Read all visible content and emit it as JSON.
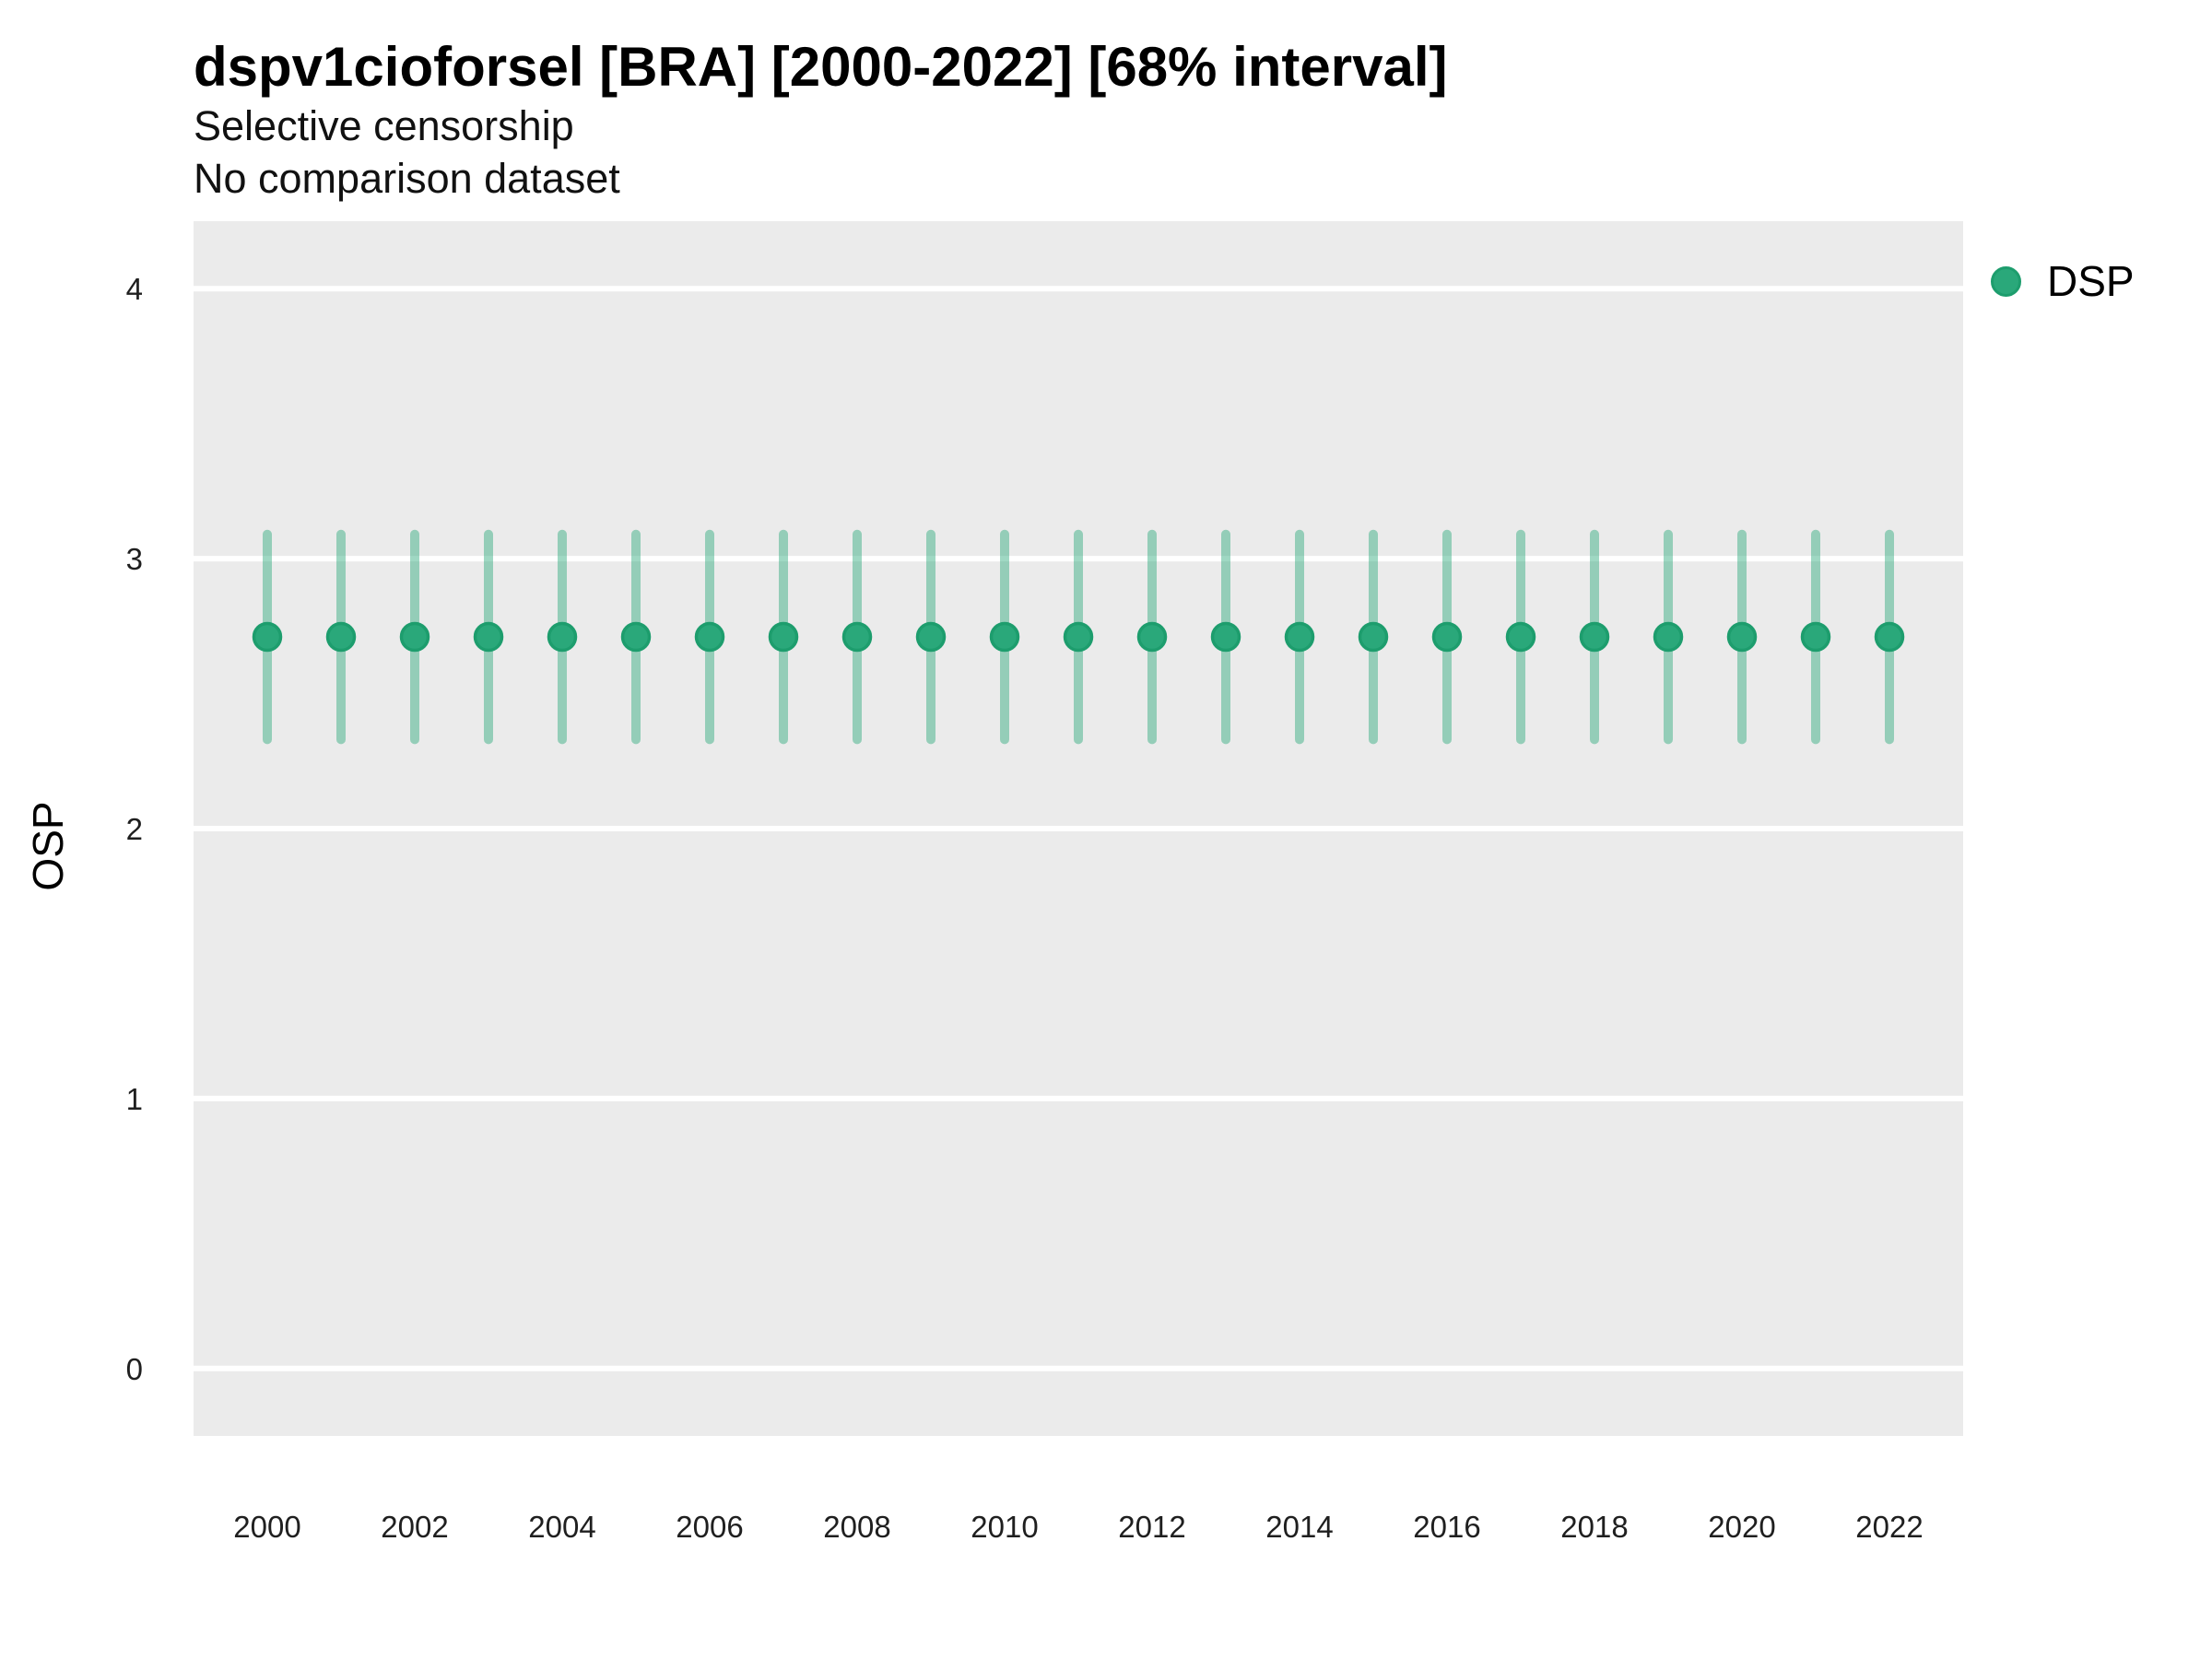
{
  "chart_data": {
    "type": "scatter",
    "title": "dspv1cioforsel [BRA] [2000-2022] [68% interval]",
    "subtitle": "Selective censorship",
    "note": "No comparison dataset",
    "xlabel": "",
    "ylabel": "OSP",
    "interval_level": "68%",
    "legend_position": "right-top",
    "legend": [
      {
        "label": "DSP"
      }
    ],
    "x": [
      2000,
      2001,
      2002,
      2003,
      2004,
      2005,
      2006,
      2007,
      2008,
      2009,
      2010,
      2011,
      2012,
      2013,
      2014,
      2015,
      2016,
      2017,
      2018,
      2019,
      2020,
      2021,
      2022
    ],
    "series": [
      {
        "name": "DSP",
        "estimate": [
          2.71,
          2.71,
          2.71,
          2.71,
          2.71,
          2.71,
          2.71,
          2.71,
          2.71,
          2.71,
          2.71,
          2.71,
          2.71,
          2.71,
          2.71,
          2.71,
          2.71,
          2.71,
          2.71,
          2.71,
          2.71,
          2.71,
          2.71
        ],
        "lower": [
          2.33,
          2.33,
          2.33,
          2.33,
          2.33,
          2.33,
          2.33,
          2.33,
          2.33,
          2.33,
          2.33,
          2.33,
          2.33,
          2.33,
          2.33,
          2.33,
          2.33,
          2.33,
          2.33,
          2.33,
          2.33,
          2.33,
          2.33
        ],
        "upper": [
          3.09,
          3.09,
          3.09,
          3.09,
          3.09,
          3.09,
          3.09,
          3.09,
          3.09,
          3.09,
          3.09,
          3.09,
          3.09,
          3.09,
          3.09,
          3.09,
          3.09,
          3.09,
          3.09,
          3.09,
          3.09,
          3.09,
          3.09
        ]
      }
    ],
    "xlim": [
      1999,
      2023
    ],
    "ylim": [
      -0.25,
      4.25
    ],
    "y_ticks": [
      "0",
      "1",
      "2",
      "3",
      "4"
    ],
    "x_ticks": [
      "2000",
      "2002",
      "2004",
      "2006",
      "2008",
      "2010",
      "2012",
      "2014",
      "2016",
      "2018",
      "2020",
      "2022"
    ],
    "grid": "horizontal-major-only",
    "colors": {
      "point_fill": "#2AA87A",
      "point_stroke": "#1D9D6D",
      "interval_stroke": "rgba(42,168,122,0.45)",
      "panel_bg": "#EBEBEB",
      "gridline": "#FFFFFF"
    }
  }
}
